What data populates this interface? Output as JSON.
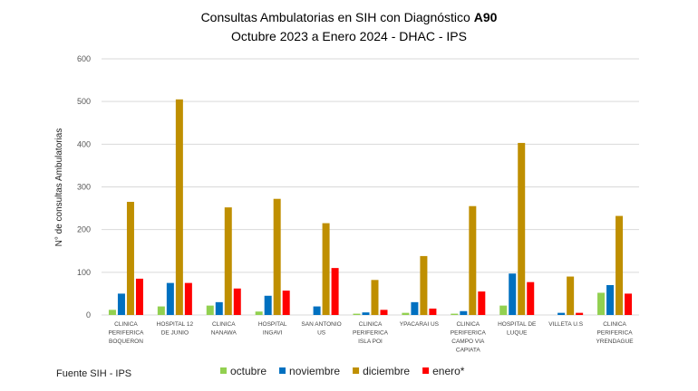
{
  "chart_data": {
    "type": "bar",
    "title_line1_prefix": "Consultas Ambulatorias en SIH con Diagnóstico ",
    "title_line1_bold": "A90",
    "title_line2": "Octubre 2023 a Enero 2024 - DHAC - IPS",
    "ylabel": "N° de consultas Ambulatorias",
    "xlabel": "",
    "ylim": [
      0,
      600
    ],
    "yticks": [
      "0",
      "100",
      "200",
      "300",
      "400",
      "500",
      "600"
    ],
    "grid": true,
    "legend_position": "bottom",
    "source": "Fuente SIH - IPS",
    "categories": [
      [
        "CLINICA",
        "PERIFERICA",
        "BOQUERON"
      ],
      [
        "HOSPITAL 12",
        "DE JUNIO"
      ],
      [
        "CLINICA",
        "NANAWA"
      ],
      [
        "HOSPITAL",
        "INGAVI"
      ],
      [
        "SAN ANTONIO",
        "US"
      ],
      [
        "CLINICA",
        "PERIFERICA",
        "ISLA POI"
      ],
      [
        "YPACARAI US"
      ],
      [
        "CLINICA",
        "PERIFERICA",
        "CAMPO VIA",
        "CAPIATA"
      ],
      [
        "HOSPITAL DE",
        "LUQUE"
      ],
      [
        "VILLETA U.S"
      ],
      [
        "CLINICA",
        "PERIFERICA",
        "YRENDAGUE"
      ]
    ],
    "series": [
      {
        "name": "octubre",
        "color": "#92D050",
        "values": [
          12,
          20,
          22,
          8,
          0,
          3,
          5,
          3,
          22,
          0,
          52
        ]
      },
      {
        "name": "noviembre",
        "color": "#0070C0",
        "values": [
          50,
          75,
          30,
          45,
          20,
          6,
          30,
          9,
          97,
          5,
          70
        ]
      },
      {
        "name": "diciembre",
        "color": "#BF8F00",
        "values": [
          265,
          505,
          252,
          272,
          215,
          82,
          138,
          255,
          403,
          90,
          232
        ]
      },
      {
        "name": "enero*",
        "color": "#FF0000",
        "values": [
          85,
          75,
          62,
          57,
          110,
          12,
          15,
          55,
          77,
          5,
          50
        ]
      }
    ]
  }
}
